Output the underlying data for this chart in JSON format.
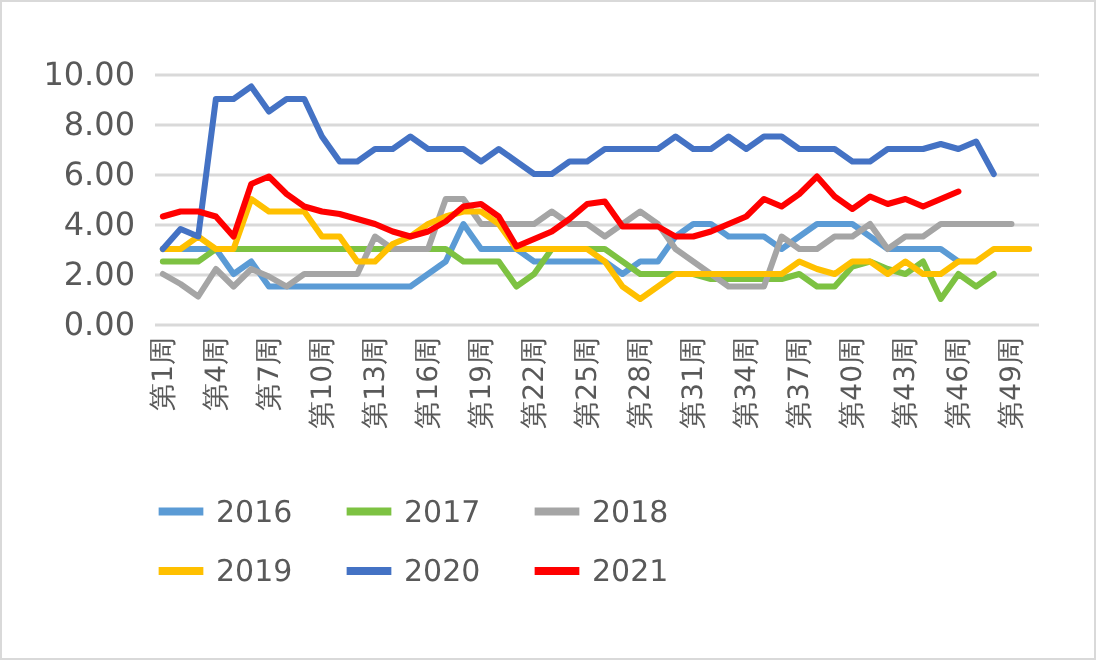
{
  "chart_data": {
    "type": "line",
    "categories": [
      "第1周",
      null,
      null,
      "第4周",
      null,
      null,
      "第7周",
      null,
      null,
      "第10周",
      null,
      null,
      "第13周",
      null,
      null,
      "第16周",
      null,
      null,
      "第19周",
      null,
      null,
      "第22周",
      null,
      null,
      "第25周",
      null,
      null,
      "第28周",
      null,
      null,
      "第31周",
      null,
      null,
      "第34周",
      null,
      null,
      "第37周",
      null,
      null,
      "第40周",
      null,
      null,
      "第43周",
      null,
      null,
      "第46周",
      null,
      null,
      "第49周",
      null
    ],
    "ylim": [
      0,
      10
    ],
    "yticks": [
      {
        "value": 0,
        "label": "0.00"
      },
      {
        "value": 2,
        "label": "2.00"
      },
      {
        "value": 4,
        "label": "4.00"
      },
      {
        "value": 6,
        "label": "6.00"
      },
      {
        "value": 8,
        "label": "8.00"
      },
      {
        "value": 10,
        "label": "10.00"
      }
    ],
    "grid": "y",
    "legend": "bottom",
    "marker": "none",
    "line_style": "solid",
    "series": [
      {
        "name": "2016",
        "color": "#5b9bd5",
        "values": [
          3.0,
          3.0,
          3.0,
          3.0,
          2.0,
          2.5,
          1.5,
          1.5,
          1.5,
          1.5,
          1.5,
          1.5,
          1.5,
          1.5,
          1.5,
          2.0,
          2.5,
          4.0,
          3.0,
          3.0,
          3.0,
          2.5,
          2.5,
          2.5,
          2.5,
          2.5,
          2.0,
          2.5,
          2.5,
          3.5,
          4.0,
          4.0,
          3.5,
          3.5,
          3.5,
          3.0,
          3.5,
          4.0,
          4.0,
          4.0,
          3.5,
          3.0,
          3.0,
          3.0,
          3.0,
          2.5,
          null,
          null,
          null,
          null
        ]
      },
      {
        "name": "2017",
        "color": "#7dc242",
        "values": [
          2.5,
          2.5,
          2.5,
          3.0,
          3.0,
          3.0,
          3.0,
          3.0,
          3.0,
          3.0,
          3.0,
          3.0,
          3.0,
          3.0,
          3.0,
          3.0,
          3.0,
          2.5,
          2.5,
          2.5,
          1.5,
          2.0,
          3.0,
          3.0,
          3.0,
          3.0,
          2.5,
          2.0,
          2.0,
          2.0,
          2.0,
          1.8,
          1.8,
          1.8,
          1.8,
          1.8,
          2.0,
          1.5,
          1.5,
          2.3,
          2.5,
          2.2,
          2.0,
          2.5,
          1.0,
          2.0,
          1.5,
          2.0,
          null,
          null
        ]
      },
      {
        "name": "2018",
        "color": "#a5a5a5",
        "values": [
          2.0,
          1.6,
          1.1,
          2.2,
          1.5,
          2.2,
          1.9,
          1.5,
          2.0,
          2.0,
          2.0,
          2.0,
          3.5,
          3.0,
          3.0,
          3.0,
          5.0,
          5.0,
          4.0,
          4.0,
          4.0,
          4.0,
          4.5,
          4.0,
          4.0,
          3.5,
          4.0,
          4.5,
          4.0,
          3.0,
          2.5,
          2.0,
          1.5,
          1.5,
          1.5,
          3.5,
          3.0,
          3.0,
          3.5,
          3.5,
          4.0,
          3.0,
          3.5,
          3.5,
          4.0,
          4.0,
          4.0,
          4.0,
          4.0,
          null
        ]
      },
      {
        "name": "2019",
        "color": "#ffc000",
        "values": [
          3.0,
          3.0,
          3.5,
          3.0,
          3.0,
          5.0,
          4.5,
          4.5,
          4.5,
          3.5,
          3.5,
          2.5,
          2.5,
          3.2,
          3.5,
          4.0,
          4.3,
          4.5,
          4.5,
          4.0,
          3.0,
          3.0,
          3.0,
          3.0,
          3.0,
          2.5,
          1.5,
          1.0,
          1.5,
          2.0,
          2.0,
          2.0,
          2.0,
          2.0,
          2.0,
          2.0,
          2.5,
          2.2,
          2.0,
          2.5,
          2.5,
          2.0,
          2.5,
          2.0,
          2.0,
          2.5,
          2.5,
          3.0,
          3.0,
          3.0
        ]
      },
      {
        "name": "2020",
        "color": "#4472c4",
        "values": [
          3.0,
          3.8,
          3.5,
          9.0,
          9.0,
          9.5,
          8.5,
          9.0,
          9.0,
          7.5,
          6.5,
          6.5,
          7.0,
          7.0,
          7.5,
          7.0,
          7.0,
          7.0,
          6.5,
          7.0,
          6.5,
          6.0,
          6.0,
          6.5,
          6.5,
          7.0,
          7.0,
          7.0,
          7.0,
          7.5,
          7.0,
          7.0,
          7.5,
          7.0,
          7.5,
          7.5,
          7.0,
          7.0,
          7.0,
          6.5,
          6.5,
          7.0,
          7.0,
          7.0,
          7.2,
          7.0,
          7.3,
          6.0,
          null,
          null
        ]
      },
      {
        "name": "2021",
        "color": "#ff0000",
        "values": [
          4.3,
          4.5,
          4.5,
          4.3,
          3.5,
          5.6,
          5.9,
          5.2,
          4.7,
          4.5,
          4.4,
          4.2,
          4.0,
          3.7,
          3.5,
          3.7,
          4.1,
          4.7,
          4.8,
          4.3,
          3.1,
          3.4,
          3.7,
          4.2,
          4.8,
          4.9,
          3.9,
          3.9,
          3.9,
          3.5,
          3.5,
          3.7,
          4.0,
          4.3,
          5.0,
          4.7,
          5.2,
          5.9,
          5.1,
          4.6,
          5.1,
          4.8,
          5.0,
          4.7,
          5.0,
          5.3,
          null,
          null,
          null,
          null
        ]
      }
    ]
  }
}
